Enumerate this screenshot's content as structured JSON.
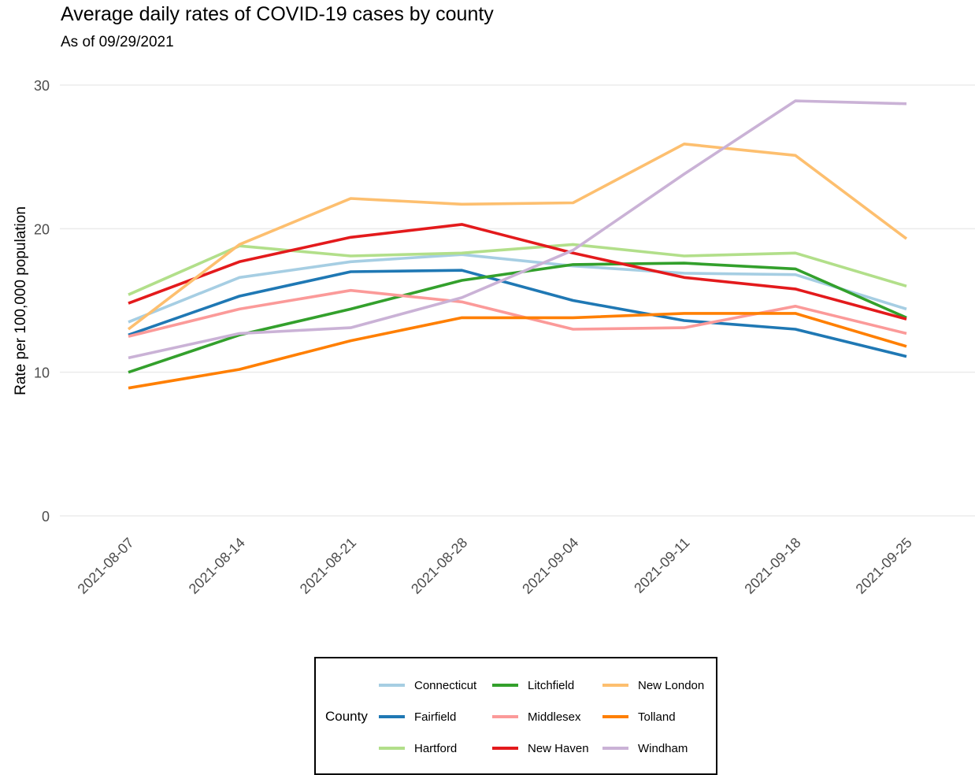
{
  "chart_data": {
    "type": "line",
    "title": "Average daily rates of COVID-19 cases by county",
    "subtitle": "As of 09/29/2021",
    "xlabel": "",
    "ylabel": "Rate per 100,000 population",
    "x": [
      "2021-08-07",
      "2021-08-14",
      "2021-08-21",
      "2021-08-28",
      "2021-09-04",
      "2021-09-11",
      "2021-09-18",
      "2021-09-25"
    ],
    "yticks": [
      "0",
      "10",
      "20",
      "30"
    ],
    "ylim": [
      0,
      30
    ],
    "grid": "horizontal",
    "legend": {
      "title": "County",
      "position": "bottom"
    },
    "series": [
      {
        "name": "Connecticut",
        "color": "#a6cee3",
        "values": [
          13.5,
          16.6,
          17.7,
          18.2,
          17.4,
          16.9,
          16.8,
          14.4
        ]
      },
      {
        "name": "Fairfield",
        "color": "#1f78b4",
        "values": [
          12.6,
          15.3,
          17.0,
          17.1,
          15.0,
          13.6,
          13.0,
          11.1
        ]
      },
      {
        "name": "Hartford",
        "color": "#b2df8a",
        "values": [
          15.4,
          18.8,
          18.1,
          18.3,
          18.9,
          18.1,
          18.3,
          16.0
        ]
      },
      {
        "name": "Litchfield",
        "color": "#33a02c",
        "values": [
          10.0,
          12.6,
          14.4,
          16.4,
          17.5,
          17.6,
          17.2,
          13.8
        ]
      },
      {
        "name": "Middlesex",
        "color": "#fb9a99",
        "values": [
          12.5,
          14.4,
          15.7,
          14.9,
          13.0,
          13.1,
          14.6,
          12.7
        ]
      },
      {
        "name": "New Haven",
        "color": "#e31a1c",
        "values": [
          14.8,
          17.7,
          19.4,
          20.3,
          18.3,
          16.6,
          15.8,
          13.7
        ]
      },
      {
        "name": "New London",
        "color": "#fdbf6f",
        "values": [
          13.0,
          18.9,
          22.1,
          21.7,
          21.8,
          25.9,
          25.1,
          19.3
        ]
      },
      {
        "name": "Tolland",
        "color": "#ff7f00",
        "values": [
          8.9,
          10.2,
          12.2,
          13.8,
          13.8,
          14.1,
          14.1,
          11.8
        ]
      },
      {
        "name": "Windham",
        "color": "#cab2d6",
        "values": [
          11.0,
          12.7,
          13.1,
          15.2,
          18.5,
          23.8,
          28.9,
          28.7
        ]
      }
    ]
  }
}
